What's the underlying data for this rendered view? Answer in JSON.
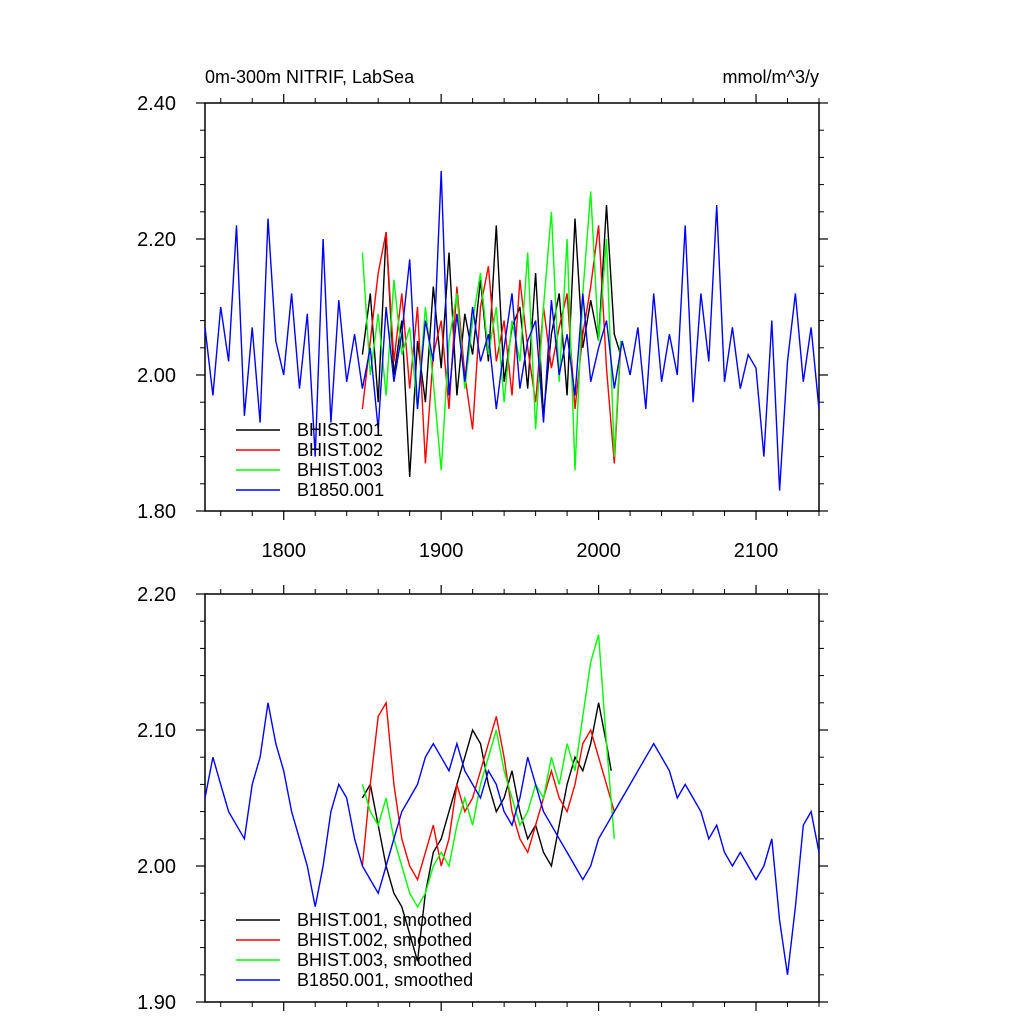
{
  "chart_data": [
    {
      "type": "line",
      "title": "0m-300m NITRIF, LabSea",
      "units": "mmol/m^3/y",
      "xlim": [
        1750,
        2140
      ],
      "ylim": [
        1.8,
        2.4
      ],
      "x_ticks": [
        1800,
        1900,
        2000,
        2100
      ],
      "x_tick_labels": [
        "1800",
        "1900",
        "2000",
        "2100"
      ],
      "y_ticks": [
        1.8,
        2.0,
        2.2,
        2.4
      ],
      "y_tick_labels": [
        "1.80",
        "2.00",
        "2.20",
        "2.40"
      ],
      "grid": false,
      "legend_position": "lower-left",
      "series": [
        {
          "name": "BHIST.001",
          "color": "#000000",
          "x": [
            1850,
            1855,
            1860,
            1865,
            1870,
            1875,
            1880,
            1885,
            1890,
            1895,
            1900,
            1905,
            1910,
            1915,
            1920,
            1925,
            1930,
            1935,
            1940,
            1945,
            1950,
            1955,
            1960,
            1965,
            1970,
            1975,
            1980,
            1985,
            1990,
            1995,
            2000,
            2005,
            2010,
            2014
          ],
          "values": [
            2.03,
            2.12,
            1.96,
            2.21,
            2.0,
            2.08,
            1.85,
            2.05,
            1.96,
            2.13,
            2.01,
            2.18,
            1.97,
            2.09,
            2.03,
            2.14,
            2.02,
            2.22,
            1.99,
            2.07,
            2.1,
            1.98,
            2.15,
            1.94,
            2.06,
            2.12,
            1.97,
            2.23,
            2.04,
            2.11,
            2.05,
            2.25,
            2.06,
            2.03
          ]
        },
        {
          "name": "BHIST.002",
          "color": "#ff0000",
          "x": [
            1850,
            1855,
            1860,
            1865,
            1870,
            1875,
            1880,
            1885,
            1890,
            1895,
            1900,
            1905,
            1910,
            1915,
            1920,
            1925,
            1930,
            1935,
            1940,
            1945,
            1950,
            1955,
            1960,
            1965,
            1970,
            1975,
            1980,
            1985,
            1990,
            1995,
            2000,
            2005,
            2010,
            2014
          ],
          "values": [
            1.95,
            2.05,
            2.15,
            2.21,
            2.02,
            2.12,
            1.98,
            2.1,
            1.87,
            2.03,
            2.08,
            1.95,
            2.13,
            2.0,
            1.92,
            2.1,
            2.16,
            2.02,
            2.08,
            1.97,
            2.14,
            2.04,
            1.96,
            2.1,
            2.01,
            2.07,
            2.12,
            1.95,
            2.06,
            2.13,
            2.22,
            2.01,
            1.87,
            2.04
          ]
        },
        {
          "name": "BHIST.003",
          "color": "#00ff00",
          "x": [
            1850,
            1855,
            1860,
            1865,
            1870,
            1875,
            1880,
            1885,
            1890,
            1895,
            1900,
            1905,
            1910,
            1915,
            1920,
            1925,
            1930,
            1935,
            1940,
            1945,
            1950,
            1955,
            1960,
            1965,
            1970,
            1975,
            1980,
            1985,
            1990,
            1995,
            2000,
            2005,
            2010,
            2014
          ],
          "values": [
            2.18,
            2.0,
            2.09,
            1.97,
            2.14,
            2.03,
            2.07,
            1.95,
            2.1,
            1.99,
            1.86,
            2.05,
            2.12,
            1.98,
            2.08,
            2.15,
            2.03,
            2.1,
            1.96,
            2.08,
            2.02,
            2.18,
            1.92,
            2.1,
            2.24,
            1.99,
            2.2,
            1.86,
            2.12,
            2.27,
            2.05,
            2.2,
            1.88,
            2.05
          ]
        },
        {
          "name": "B1850.001",
          "color": "#0000ff",
          "x": [
            1750,
            1755,
            1760,
            1765,
            1770,
            1775,
            1780,
            1785,
            1790,
            1795,
            1800,
            1805,
            1810,
            1815,
            1820,
            1825,
            1830,
            1835,
            1840,
            1845,
            1850,
            1855,
            1860,
            1865,
            1870,
            1875,
            1880,
            1885,
            1890,
            1895,
            1900,
            1905,
            1910,
            1915,
            1920,
            1925,
            1930,
            1935,
            1940,
            1945,
            1950,
            1955,
            1960,
            1965,
            1970,
            1975,
            1980,
            1985,
            1990,
            1995,
            2000,
            2005,
            2010,
            2015,
            2020,
            2025,
            2030,
            2035,
            2040,
            2045,
            2050,
            2055,
            2060,
            2065,
            2070,
            2075,
            2080,
            2085,
            2090,
            2095,
            2100,
            2105,
            2110,
            2115,
            2120,
            2125,
            2130,
            2135,
            2140
          ],
          "values": [
            2.07,
            1.97,
            2.1,
            2.02,
            2.22,
            1.94,
            2.07,
            1.93,
            2.23,
            2.05,
            2.0,
            2.12,
            1.98,
            2.09,
            1.88,
            2.2,
            1.93,
            2.11,
            1.99,
            2.06,
            1.98,
            2.04,
            1.92,
            2.1,
            1.99,
            2.06,
            2.17,
            1.95,
            2.08,
            2.02,
            2.3,
            1.97,
            2.09,
            1.99,
            2.1,
            2.02,
            2.06,
            1.95,
            2.04,
            2.12,
            1.98,
            2.05,
            2.08,
            1.93,
            2.11,
            2.0,
            2.06,
            1.97,
            2.12,
            1.99,
            2.04,
            2.08,
            1.98,
            2.05,
            2.0,
            2.07,
            1.95,
            2.12,
            1.99,
            2.06,
            2.0,
            2.22,
            1.96,
            2.12,
            2.02,
            2.25,
            1.99,
            2.07,
            1.98,
            2.03,
            2.01,
            1.88,
            2.08,
            1.83,
            2.02,
            2.12,
            1.99,
            2.07,
            1.95
          ]
        }
      ]
    },
    {
      "type": "line",
      "xlim": [
        1750,
        2140
      ],
      "ylim": [
        1.9,
        2.2
      ],
      "x_ticks": [
        1800,
        1900,
        2000,
        2100
      ],
      "y_ticks": [
        1.9,
        2.0,
        2.1,
        2.2
      ],
      "y_tick_labels": [
        "1.90",
        "2.00",
        "2.10",
        "2.20"
      ],
      "grid": false,
      "legend_position": "lower-left",
      "series": [
        {
          "name": "BHIST.001, smoothed",
          "color": "#000000",
          "x": [
            1850,
            1855,
            1860,
            1865,
            1870,
            1875,
            1880,
            1885,
            1890,
            1895,
            1900,
            1905,
            1910,
            1915,
            1920,
            1925,
            1930,
            1935,
            1940,
            1945,
            1950,
            1955,
            1960,
            1965,
            1970,
            1975,
            1980,
            1985,
            1990,
            1995,
            2000,
            2005,
            2008
          ],
          "values": [
            2.05,
            2.06,
            2.03,
            2.0,
            1.98,
            1.97,
            1.95,
            1.93,
            1.98,
            2.01,
            2.02,
            2.04,
            2.06,
            2.08,
            2.1,
            2.09,
            2.06,
            2.04,
            2.05,
            2.07,
            2.04,
            2.02,
            2.03,
            2.01,
            2.0,
            2.03,
            2.06,
            2.08,
            2.07,
            2.09,
            2.12,
            2.09,
            2.07
          ]
        },
        {
          "name": "BHIST.002, smoothed",
          "color": "#ff0000",
          "x": [
            1850,
            1855,
            1860,
            1865,
            1870,
            1875,
            1880,
            1885,
            1890,
            1895,
            1900,
            1905,
            1910,
            1915,
            1920,
            1925,
            1930,
            1935,
            1940,
            1945,
            1950,
            1955,
            1960,
            1965,
            1970,
            1975,
            1980,
            1985,
            1990,
            1995,
            2000,
            2005,
            2010
          ],
          "values": [
            2.0,
            2.06,
            2.11,
            2.12,
            2.06,
            2.02,
            2.0,
            1.99,
            2.01,
            2.03,
            2.0,
            2.02,
            2.06,
            2.04,
            2.05,
            2.07,
            2.09,
            2.11,
            2.08,
            2.04,
            2.02,
            2.01,
            2.03,
            2.05,
            2.07,
            2.05,
            2.04,
            2.06,
            2.09,
            2.1,
            2.08,
            2.06,
            2.04
          ]
        },
        {
          "name": "BHIST.003, smoothed",
          "color": "#00ff00",
          "x": [
            1850,
            1855,
            1860,
            1865,
            1870,
            1875,
            1880,
            1885,
            1890,
            1895,
            1900,
            1905,
            1910,
            1915,
            1920,
            1925,
            1930,
            1935,
            1940,
            1945,
            1950,
            1955,
            1960,
            1965,
            1970,
            1975,
            1980,
            1985,
            1990,
            1995,
            2000,
            2005,
            2010
          ],
          "values": [
            2.06,
            2.04,
            2.03,
            2.05,
            2.02,
            2.0,
            1.98,
            1.97,
            1.98,
            2.0,
            2.01,
            2.0,
            2.03,
            2.05,
            2.03,
            2.06,
            2.08,
            2.1,
            2.07,
            2.05,
            2.03,
            2.04,
            2.06,
            2.05,
            2.08,
            2.06,
            2.09,
            2.07,
            2.11,
            2.15,
            2.17,
            2.09,
            2.02
          ]
        },
        {
          "name": "B1850.001, smoothed",
          "color": "#0000ff",
          "x": [
            1750,
            1755,
            1760,
            1765,
            1770,
            1775,
            1780,
            1785,
            1790,
            1795,
            1800,
            1805,
            1810,
            1815,
            1820,
            1825,
            1830,
            1835,
            1840,
            1845,
            1850,
            1855,
            1860,
            1865,
            1870,
            1875,
            1880,
            1885,
            1890,
            1895,
            1900,
            1905,
            1910,
            1915,
            1920,
            1925,
            1930,
            1935,
            1940,
            1945,
            1950,
            1955,
            1960,
            1965,
            1970,
            1975,
            1980,
            1985,
            1990,
            1995,
            2000,
            2005,
            2010,
            2015,
            2020,
            2025,
            2030,
            2035,
            2040,
            2045,
            2050,
            2055,
            2060,
            2065,
            2070,
            2075,
            2080,
            2085,
            2090,
            2095,
            2100,
            2105,
            2110,
            2115,
            2120,
            2125,
            2130,
            2135,
            2140
          ],
          "values": [
            2.05,
            2.08,
            2.06,
            2.04,
            2.03,
            2.02,
            2.06,
            2.08,
            2.12,
            2.09,
            2.07,
            2.04,
            2.02,
            2.0,
            1.97,
            2.0,
            2.04,
            2.06,
            2.05,
            2.02,
            2.0,
            1.99,
            1.98,
            2.0,
            2.02,
            2.04,
            2.05,
            2.06,
            2.08,
            2.09,
            2.08,
            2.07,
            2.09,
            2.07,
            2.06,
            2.05,
            2.07,
            2.06,
            2.04,
            2.03,
            2.05,
            2.08,
            2.06,
            2.04,
            2.03,
            2.02,
            2.01,
            2.0,
            1.99,
            2.0,
            2.02,
            2.03,
            2.04,
            2.05,
            2.06,
            2.07,
            2.08,
            2.09,
            2.08,
            2.07,
            2.05,
            2.06,
            2.05,
            2.04,
            2.02,
            2.03,
            2.01,
            2.0,
            2.01,
            2.0,
            1.99,
            2.0,
            2.02,
            1.96,
            1.92,
            1.97,
            2.03,
            2.04,
            2.01
          ]
        }
      ]
    }
  ]
}
